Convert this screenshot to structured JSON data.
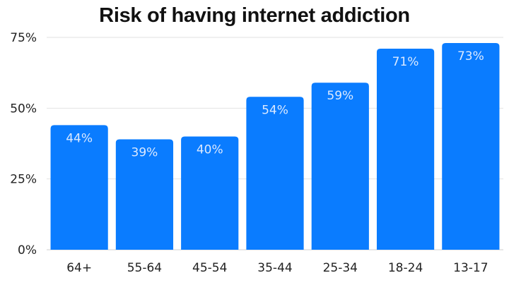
{
  "chart_data": {
    "type": "bar",
    "title": "Risk of having internet addiction",
    "categories": [
      "64+",
      "55-64",
      "45-54",
      "35-44",
      "25-34",
      "18-24",
      "13-17"
    ],
    "values": [
      44,
      39,
      40,
      54,
      59,
      71,
      73
    ],
    "value_labels": [
      "44%",
      "39%",
      "40%",
      "54%",
      "59%",
      "71%",
      "73%"
    ],
    "ylim": [
      0,
      75
    ],
    "y_ticks": [
      0,
      25,
      50,
      75
    ],
    "y_tick_labels": [
      "0%",
      "25%",
      "50%",
      "75%"
    ],
    "xlabel": "",
    "ylabel": "",
    "grid": true,
    "colors": {
      "bar": "#0a7cff",
      "grid": "#e2e2e2",
      "data_label": "#dbe9ff"
    }
  }
}
